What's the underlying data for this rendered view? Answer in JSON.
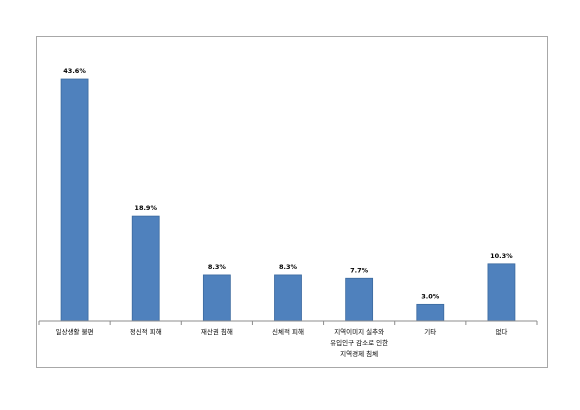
{
  "chart_data": {
    "type": "bar",
    "title": "",
    "xlabel": "",
    "ylabel": "",
    "categories": [
      [
        "일상생활 불편"
      ],
      [
        "정신적 피해"
      ],
      [
        "재산권 침해"
      ],
      [
        "신체적 피해"
      ],
      [
        "지역이미지 실추와",
        "유입인구 감소로 인한",
        "지역경제 침체"
      ],
      [
        "기타"
      ],
      [
        "없다"
      ]
    ],
    "values": [
      43.6,
      18.9,
      8.3,
      8.3,
      7.7,
      3.0,
      10.3
    ],
    "value_labels": [
      "43.6%",
      "18.9%",
      "8.3%",
      "8.3%",
      "7.7%",
      "3.0%",
      "10.3%"
    ],
    "unit": "%",
    "ylim": [
      0,
      50
    ],
    "grid": false,
    "legend": "none",
    "colors": {
      "bar": "#4f81bd",
      "bar_edge": "#3c6a9f",
      "axis": "#8c8c8c",
      "frame": "#a8a8a8"
    }
  }
}
